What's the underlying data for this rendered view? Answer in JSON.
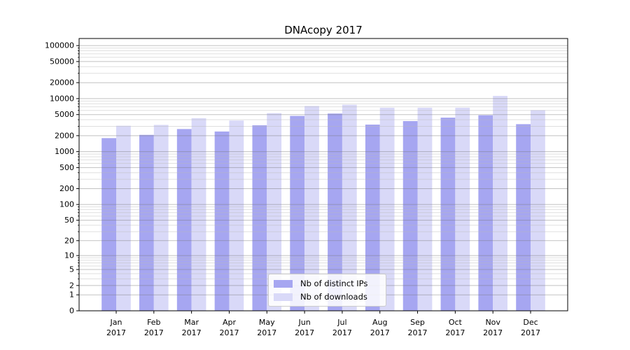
{
  "title": "DNAcopy 2017",
  "legend": {
    "items": [
      {
        "label": "Nb of distinct IPs",
        "color": "#a6a6f1"
      },
      {
        "label": "Nb of downloads",
        "color": "#d9d9f8"
      }
    ]
  },
  "chart_data": {
    "type": "bar",
    "title": "DNAcopy 2017",
    "categories": [
      "Jan",
      "Feb",
      "Mar",
      "Apr",
      "May",
      "Jun",
      "Jul",
      "Aug",
      "Sep",
      "Oct",
      "Nov",
      "Dec"
    ],
    "x_tick_year": "2017",
    "series": [
      {
        "name": "Nb of distinct IPs",
        "color": "#a6a6f1",
        "values": [
          1800,
          2070,
          2670,
          2400,
          3140,
          4720,
          5230,
          3240,
          3770,
          4380,
          4860,
          3300
        ]
      },
      {
        "name": "Nb of downloads",
        "color": "#d9d9f8",
        "values": [
          3080,
          3200,
          4270,
          3860,
          5320,
          7280,
          7670,
          6730,
          6730,
          6730,
          11270,
          6060
        ]
      }
    ],
    "yscale": "log1p",
    "ylim": [
      0,
      136000
    ],
    "yticks": [
      0,
      1,
      2,
      5,
      10,
      20,
      50,
      100,
      200,
      500,
      1000,
      2000,
      5000,
      10000,
      20000,
      50000,
      100000
    ],
    "grid": true,
    "legend_position": "lower-center-inside",
    "xlabel": "",
    "ylabel": ""
  }
}
